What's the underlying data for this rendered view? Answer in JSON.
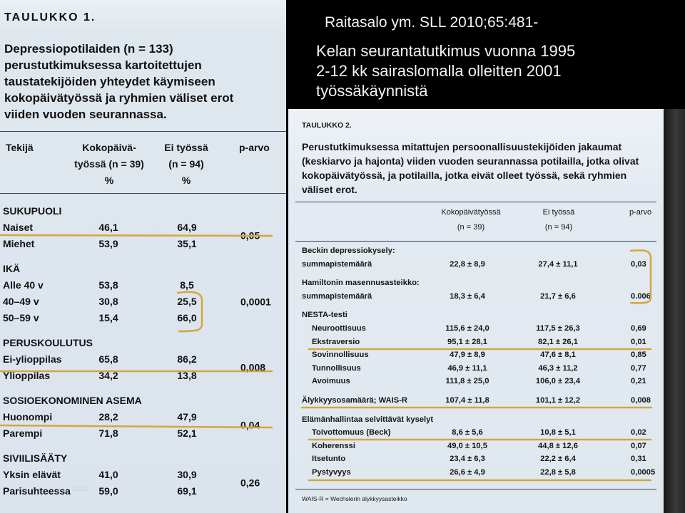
{
  "slide": {
    "citation": "Raitasalo ym. SLL 2010;65:481-",
    "description_lines": [
      "Kelan seurantatutkimus vuonna 1995",
      "2-12 kk sairaslomalla olleitten 2001",
      "työssäkäynnistä"
    ],
    "footer_date": "2014"
  },
  "colors": {
    "highlight": "#d4a640",
    "background": "#000000",
    "table_background": "#dde6ee",
    "text_on_dark": "#f3f3f3"
  },
  "table1": {
    "label": "TAULUKKO 1.",
    "title_lines": [
      "Depressiopotilaiden (n = 133)",
      "perustutkimuksessa kartoitettujen",
      "taustatekijöiden yhteydet käymiseen",
      "kokopäivätyössä ja ryhmien väliset erot",
      "viiden vuoden seurannassa."
    ],
    "header": {
      "factor": "Tekijä",
      "fulltime": [
        "Kokopäivä-",
        "työssä (n = 39)",
        "%"
      ],
      "not_working": [
        "Ei työssä",
        "(n = 94)",
        "%"
      ],
      "p": "p-arvo"
    },
    "groups": [
      {
        "name": "SUKUPUOLI",
        "p": "0,05",
        "rows": [
          {
            "label": "Naiset",
            "fulltime": "46,1",
            "not_working": "64,9"
          },
          {
            "label": "Miehet",
            "fulltime": "53,9",
            "not_working": "35,1"
          }
        ]
      },
      {
        "name": "IKÄ",
        "p": "0,0001",
        "rows": [
          {
            "label": "Alle 40 v",
            "fulltime": "53,8",
            "not_working": "8,5"
          },
          {
            "label": "40–49 v",
            "fulltime": "30,8",
            "not_working": "25,5"
          },
          {
            "label": "50–59 v",
            "fulltime": "15,4",
            "not_working": "66,0"
          }
        ]
      },
      {
        "name": "PERUSKOULUTUS",
        "p": "0,008",
        "rows": [
          {
            "label": "Ei-ylioppilas",
            "fulltime": "65,8",
            "not_working": "86,2"
          },
          {
            "label": "Ylioppilas",
            "fulltime": "34,2",
            "not_working": "13,8"
          }
        ]
      },
      {
        "name": "SOSIOEKONOMINEN ASEMA",
        "p": "0,04",
        "rows": [
          {
            "label": "Huonompi",
            "fulltime": "28,2",
            "not_working": "47,9"
          },
          {
            "label": "Parempi",
            "fulltime": "71,8",
            "not_working": "52,1"
          }
        ]
      },
      {
        "name": "SIVIILISÄÄTY",
        "p": "0,26",
        "rows": [
          {
            "label": "Yksin elävät",
            "fulltime": "41,0",
            "not_working": "30,9"
          },
          {
            "label": "Parisuhteessa",
            "fulltime": "59,0",
            "not_working": "69,1"
          }
        ]
      }
    ]
  },
  "table2": {
    "label": "TAULUKKO 2.",
    "title_lines": [
      "Perustutkimuksessa mitattujen persoonallisuustekijöiden jakaumat",
      "(keskiarvo ja hajonta) viiden vuoden seurannassa potilailla, jotka olivat",
      "kokopäivätyössä, ja potilailla, jotka eivät olleet työssä, sekä ryhmien",
      "väliset erot."
    ],
    "header": {
      "fulltime": [
        "Kokopäivätyössä",
        "(n = 39)"
      ],
      "not_working": [
        "Ei työssä",
        "(n = 94)"
      ],
      "p": "p-arvo"
    },
    "sections": [
      {
        "title": "Beckin depressiokysely:",
        "measures": [
          {
            "label": "summapistemäärä",
            "fulltime": "22,8 ± 8,9",
            "not_working": "27,4 ± 11,1",
            "p": "0,03"
          }
        ]
      },
      {
        "title": "Hamiltonin masennusasteikko:",
        "measures": [
          {
            "label": "summapistemäärä",
            "fulltime": "18,3 ± 6,4",
            "not_working": "21,7 ± 6,6",
            "p": "0.006"
          }
        ]
      },
      {
        "title": "NESTA-testi",
        "subscales": [
          {
            "label": "Neuroottisuus",
            "fulltime": "115,6 ± 24,0",
            "not_working": "117,5 ± 26,3",
            "p": "0,69"
          },
          {
            "label": "Ekstraversio",
            "fulltime": "95,1 ± 28,1",
            "not_working": "82,1 ± 26,1",
            "p": "0,01"
          },
          {
            "label": "Sovinnollisuus",
            "fulltime": "47,9 ± 8,9",
            "not_working": "47,6 ± 8,1",
            "p": "0,85"
          },
          {
            "label": "Tunnollisuus",
            "fulltime": "46,9 ± 11,1",
            "not_working": "46,3 ± 11,2",
            "p": "0,77"
          },
          {
            "label": "Avoimuus",
            "fulltime": "111,8 ± 25,0",
            "not_working": "106,0 ± 23,4",
            "p": "0,21"
          }
        ]
      },
      {
        "measures": [
          {
            "label": "Älykkyysosamäärä; WAIS-R",
            "fulltime": "107,4 ± 11,8",
            "not_working": "101,1 ± 12,2",
            "p": "0,008"
          }
        ]
      },
      {
        "title": "Elämänhallintaa selvittävät kyselyt",
        "subscales": [
          {
            "label": "Toivottomuus (Beck)",
            "fulltime": "8,6 ± 5,6",
            "not_working": "10,8 ± 5,1",
            "p": "0,02"
          },
          {
            "label": "Koherenssi",
            "fulltime": "49,0 ± 10,5",
            "not_working": "44,8 ± 12,6",
            "p": "0,07"
          },
          {
            "label": "Itsetunto",
            "fulltime": "23,4 ± 6,3",
            "not_working": "22,2 ± 6,4",
            "p": "0,31"
          },
          {
            "label": "Pystyvyys",
            "fulltime": "26,6 ± 4,9",
            "not_working": "22,8 ± 5,8",
            "p": "0,0005"
          }
        ]
      }
    ],
    "footnote": "WAIS-R = Wechslerin älykkyysasteikko"
  }
}
